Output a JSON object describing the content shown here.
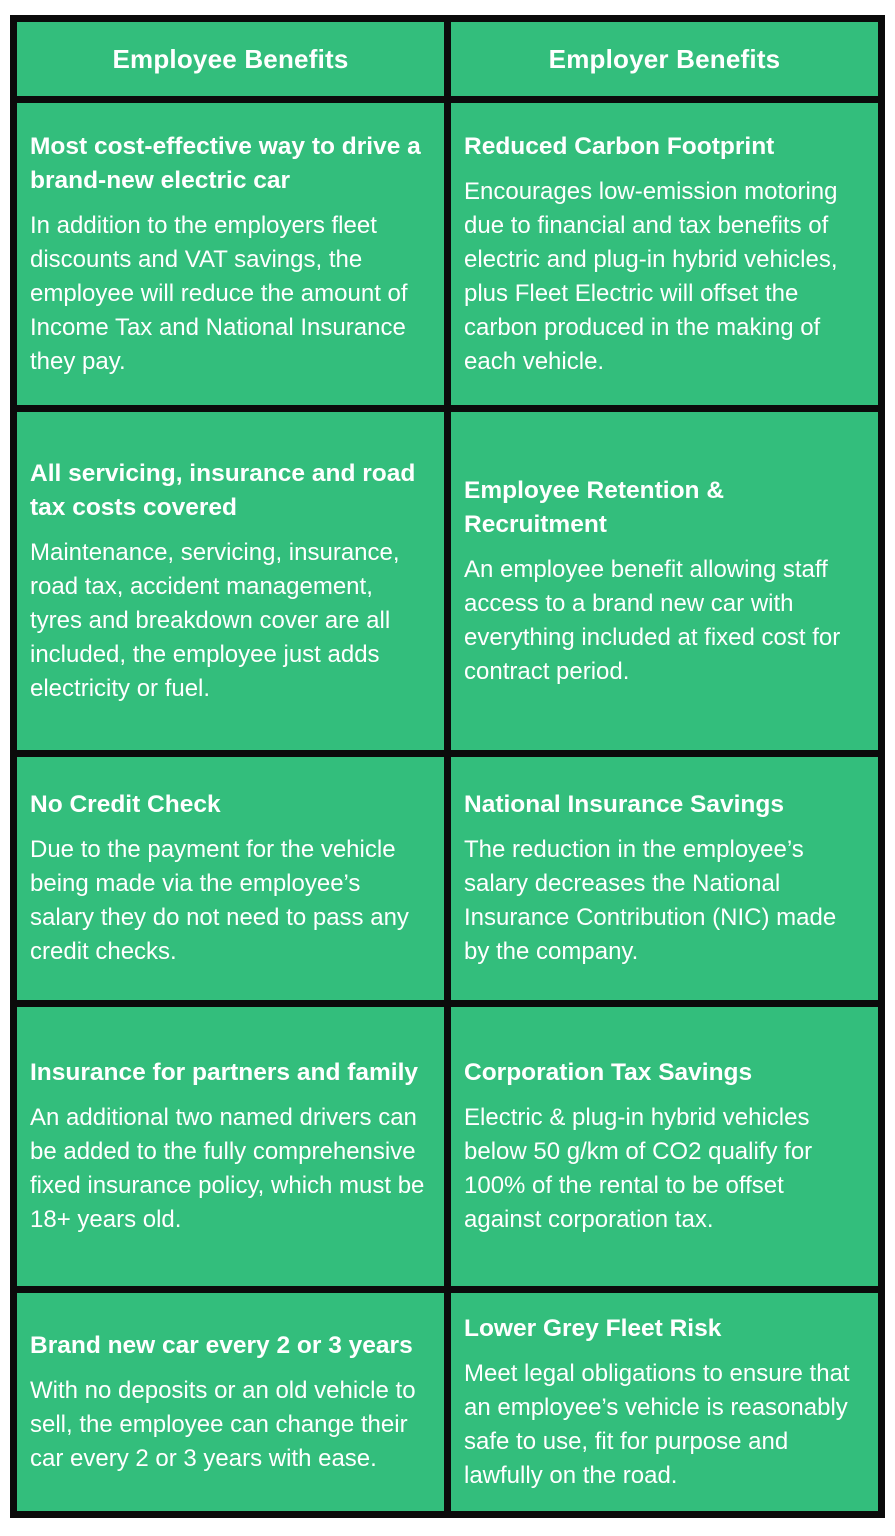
{
  "colors": {
    "cell_green": "#33be7c",
    "grid_black": "#0b0b0b",
    "text_white": "#ffffff",
    "page_background": "#ffffff"
  },
  "table": {
    "headers": [
      "Employee Benefits",
      "Employer Benefits"
    ],
    "rows": [
      {
        "left": {
          "title": "Most cost-effective way to drive a brand-new electric car",
          "body": "In addition to the employers fleet discounts and VAT savings, the employee will reduce the amount of Income Tax and National Insurance they pay."
        },
        "right": {
          "title": "Reduced Carbon Footprint",
          "body": "Encourages low-emission motoring due to financial and tax benefits of electric and plug-in hybrid vehicles, plus Fleet Electric will offset the carbon produced in the making of each vehicle."
        }
      },
      {
        "left": {
          "title": "All servicing, insurance and road tax costs covered",
          "body": "Maintenance, servicing, insurance, road tax, accident management, tyres and breakdown cover are all included, the employee just adds electricity or fuel."
        },
        "right": {
          "title": "Employee Retention & Recruitment",
          "body": "An employee benefit allowing staff access to a brand new car with everything included at fixed cost for contract period."
        }
      },
      {
        "left": {
          "title": "No Credit Check",
          "body": "Due to the payment for the vehicle being made via the employee’s salary they do not need to pass any credit checks."
        },
        "right": {
          "title": "National Insurance Savings",
          "body": "The reduction in the employee’s salary decreases the National Insurance Contribution (NIC) made by the company."
        }
      },
      {
        "left": {
          "title": "Insurance for partners and family",
          "body": "An additional two named drivers can be added to the fully comprehensive fixed insurance policy, which must be 18+ years old."
        },
        "right": {
          "title": "Corporation Tax Savings",
          "body": "Electric & plug-in hybrid vehicles below 50 g/km of CO2 qualify for 100% of the rental to be offset against corporation tax."
        }
      },
      {
        "left": {
          "title": "Brand new car every 2 or 3 years",
          "body": "With no deposits or an old vehicle to sell, the employee can change their car every 2 or 3 years with ease."
        },
        "right": {
          "title": "Lower Grey Fleet Risk",
          "body": "Meet legal obligations to ensure that an employee’s vehicle is reasonably safe to use, fit for purpose and lawfully on the road."
        }
      }
    ]
  }
}
